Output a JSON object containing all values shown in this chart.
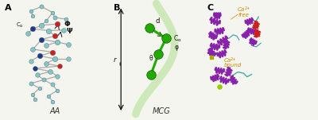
{
  "figsize": [
    4.0,
    1.51
  ],
  "dpi": 100,
  "background_color": "#f5f5f0",
  "panel_labels": [
    "A",
    "B",
    "C"
  ],
  "panel_label_fontsize": 8,
  "panel_label_fontweight": "bold",
  "label_AA": "AA",
  "label_MCG": "MCG",
  "label_fontsize": 7,
  "phi_label": "Φ",
  "psi_label": "Ψ",
  "rij_label": "r",
  "rij_sub": "ij",
  "d_label": "d",
  "ca_label": "C",
  "ca_sub": "α",
  "theta_label": "θ",
  "phi_small_label": "φ",
  "ca2_free": "Ca",
  "ca2_free2": "2+",
  "free_label": "free",
  "ca2_bound": "Ca",
  "ca2_bound2": "2+",
  "bound_label": "bound",
  "text_color_dark": "#1a1a1a",
  "atom_teal": "#7ec8c8",
  "atom_blue": "#1a3a8a",
  "atom_red": "#cc2020",
  "atom_dark_teal": "#5aabab",
  "bond_color": "#aaaaaa",
  "green_dark": "#22aa00",
  "green_light": "#c8e8b0",
  "purple_helix": "#8822aa",
  "red_helix": "#cc2020",
  "teal_loop": "#44aaaa",
  "yellow_ca": "#aaaa00",
  "orange_text": "#cc8800"
}
